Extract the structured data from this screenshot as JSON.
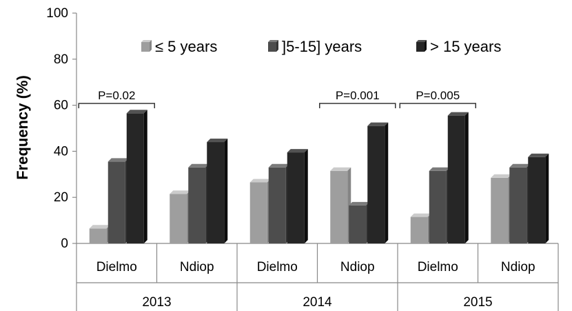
{
  "chart_data": {
    "type": "bar",
    "title": "",
    "xlabel": "",
    "ylabel": "Frequency (%)",
    "ylim": [
      0,
      100
    ],
    "yticks": [
      0,
      20,
      40,
      60,
      80,
      100
    ],
    "grid": false,
    "legend_position": "top",
    "groups": [
      {
        "year": "2013",
        "categories": [
          "Dielmo",
          "Ndiop"
        ]
      },
      {
        "year": "2014",
        "categories": [
          "Dielmo",
          "Ndiop"
        ]
      },
      {
        "year": "2015",
        "categories": [
          "Dielmo",
          "Ndiop"
        ]
      }
    ],
    "categories": [
      "Dielmo 2013",
      "Ndiop 2013",
      "Dielmo 2014",
      "Ndiop 2014",
      "Dielmo 2015",
      "Ndiop 2015"
    ],
    "series": [
      {
        "name": "≤ 5 years",
        "color": "#9e9e9e",
        "values": [
          6.5,
          21.5,
          26.5,
          31.5,
          11.5,
          28.5
        ]
      },
      {
        "name": "]5-15] years",
        "color": "#4d4d4d",
        "values": [
          35.5,
          33,
          33,
          16.5,
          31.5,
          33
        ]
      },
      {
        "name": "> 15 years",
        "color": "#262626",
        "values": [
          56.5,
          44,
          39.5,
          51,
          55.5,
          37.5
        ]
      }
    ],
    "annotations": [
      {
        "text": "P=0.02",
        "category_index": 0
      },
      {
        "text": "P=0.001",
        "category_index": 3
      },
      {
        "text": "P=0.005",
        "category_index": 4
      }
    ]
  }
}
